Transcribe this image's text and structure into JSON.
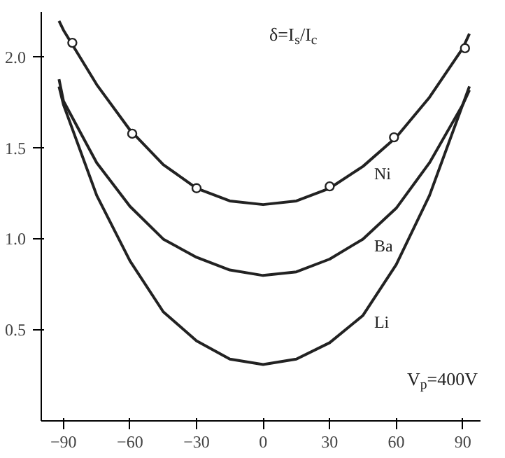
{
  "chart_data": {
    "type": "line",
    "ylabel": "δ=I$_{s}$/I$_{c}$",
    "annotations": [
      "V$_{p}$=400V"
    ],
    "x": [
      -92,
      -90,
      -75,
      -60,
      -45,
      -30,
      -15,
      0,
      15,
      30,
      45,
      60,
      75,
      90,
      93
    ],
    "series": [
      {
        "name": "Ni",
        "color": "#222222",
        "values": [
          2.2,
          2.15,
          1.85,
          1.6,
          1.41,
          1.28,
          1.21,
          1.19,
          1.21,
          1.28,
          1.4,
          1.56,
          1.78,
          2.05,
          2.13
        ]
      },
      {
        "type": "scatter",
        "marker": "circle",
        "color": "#222222",
        "x": [
          -86,
          -59,
          -30,
          30,
          59,
          91
        ],
        "values": [
          2.08,
          1.58,
          1.28,
          1.29,
          1.56,
          2.05
        ]
      },
      {
        "name": "Ba",
        "color": "#222222",
        "values": [
          1.88,
          1.76,
          1.42,
          1.18,
          1.0,
          0.9,
          0.83,
          0.8,
          0.82,
          0.89,
          1.0,
          1.17,
          1.42,
          1.74,
          1.82
        ]
      },
      {
        "name": "Li",
        "color": "#222222",
        "values": [
          1.84,
          1.74,
          1.24,
          0.88,
          0.6,
          0.44,
          0.34,
          0.31,
          0.34,
          0.43,
          0.58,
          0.86,
          1.24,
          1.74,
          1.84
        ]
      }
    ],
    "xlim": [
      -100,
      98
    ],
    "ylim": [
      0,
      2.25
    ],
    "xticks": [
      -90,
      -60,
      -30,
      0,
      30,
      60,
      90
    ],
    "yticks": [
      0.5,
      {
        "value": 1,
        "label": "1.0"
      },
      1.5,
      {
        "value": 2,
        "label": "2.0"
      }
    ],
    "grid": false,
    "marker": "none",
    "line_style": "solid"
  }
}
